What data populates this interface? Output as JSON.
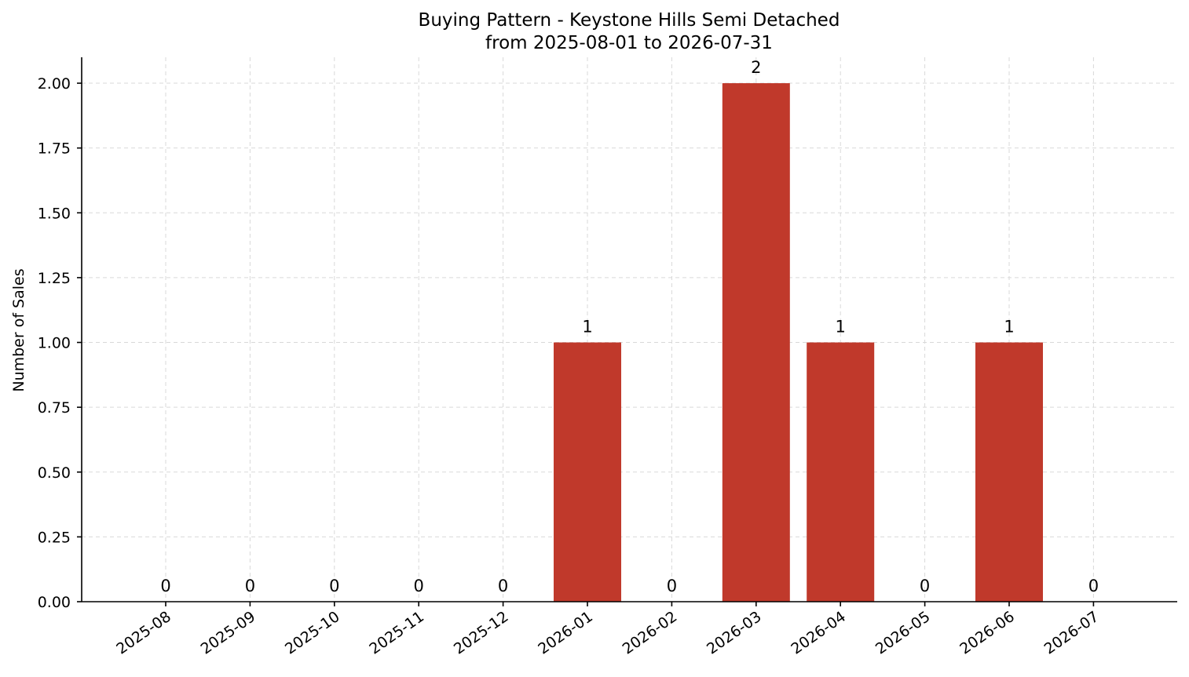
{
  "chart_data": {
    "type": "bar",
    "title": "Buying Pattern - Keystone Hills Semi Detached",
    "subtitle": "from 2025-08-01 to 2026-07-31",
    "xlabel": "",
    "ylabel": "Number of Sales",
    "categories": [
      "2025-08",
      "2025-09",
      "2025-10",
      "2025-11",
      "2025-12",
      "2026-01",
      "2026-02",
      "2026-03",
      "2026-04",
      "2026-05",
      "2026-06",
      "2026-07"
    ],
    "values": [
      0,
      0,
      0,
      0,
      0,
      1,
      0,
      2,
      1,
      0,
      1,
      0
    ],
    "data_labels": [
      "0",
      "0",
      "0",
      "0",
      "0",
      "1",
      "0",
      "2",
      "1",
      "0",
      "1",
      "0"
    ],
    "ylim": [
      0,
      2.1
    ],
    "y_ticks": [
      0,
      0.25,
      0.5,
      0.75,
      1.0,
      1.25,
      1.5,
      1.75,
      2.0
    ],
    "y_tick_labels": [
      "0.00",
      "0.25",
      "0.50",
      "0.75",
      "1.00",
      "1.25",
      "1.50",
      "1.75",
      "2.00"
    ],
    "grid": true,
    "bar_color": "#c0392b",
    "grid_color": "#d9d9d9"
  }
}
